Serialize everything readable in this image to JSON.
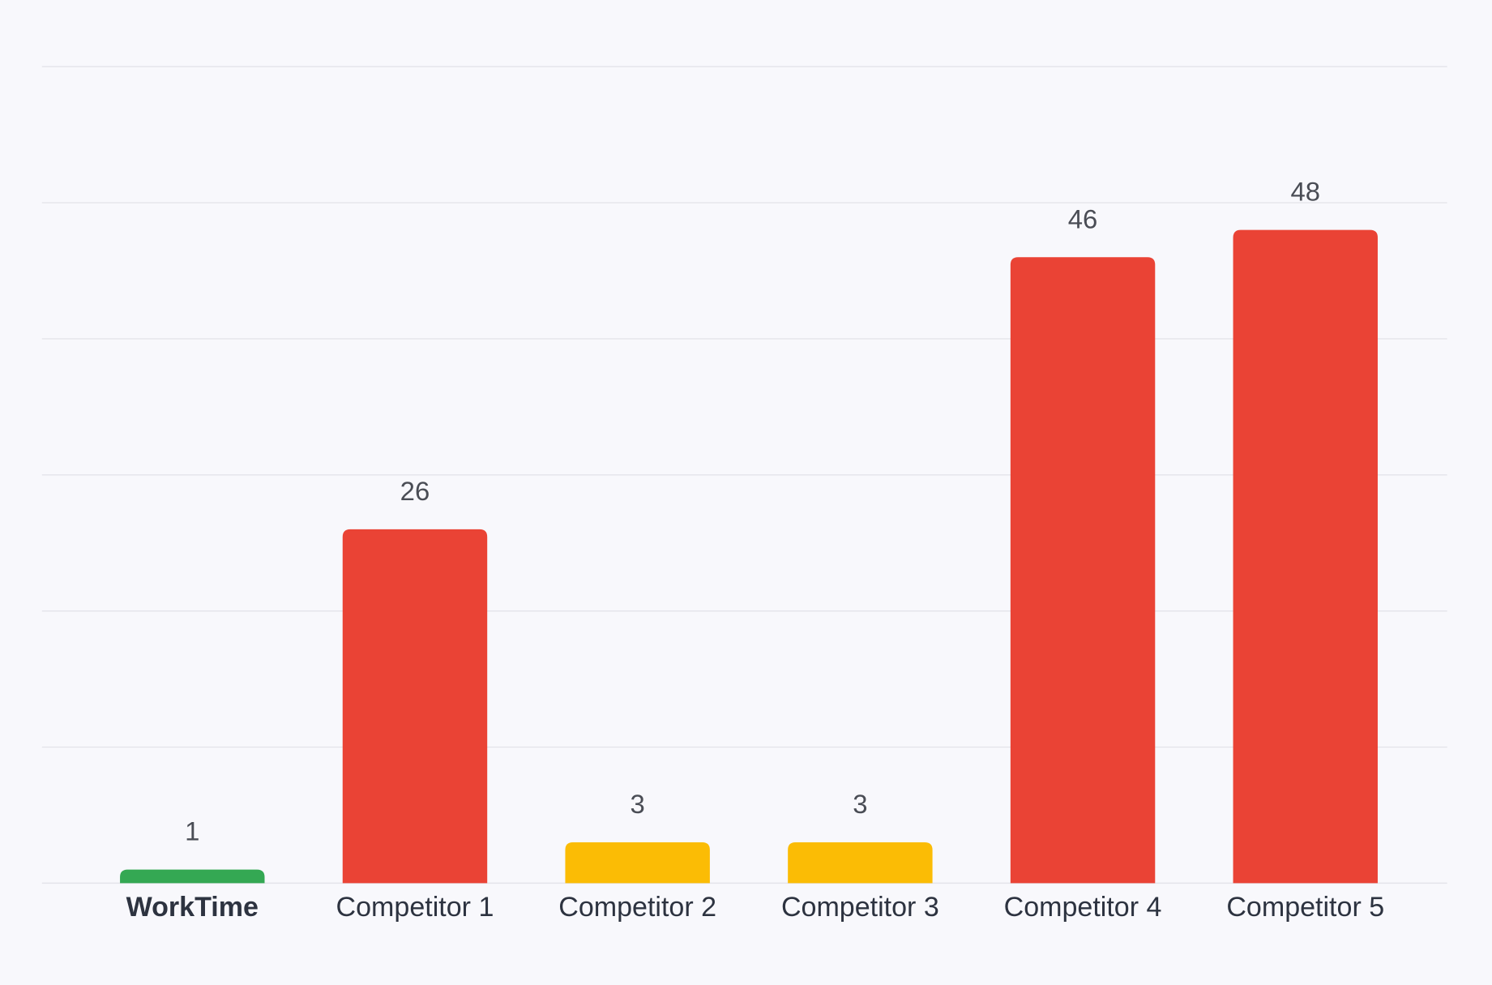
{
  "chart_data": {
    "type": "bar",
    "categories": [
      "WorkTime",
      "Competitor 1",
      "Competitor 2",
      "Competitor 3",
      "Competitor 4",
      "Competitor 5"
    ],
    "values": [
      1,
      26,
      3,
      3,
      46,
      48
    ],
    "colors": [
      "#34a853",
      "#ea4335",
      "#fbbc05",
      "#fbbc05",
      "#ea4335",
      "#ea4335"
    ],
    "ylim": [
      0,
      60
    ],
    "yticks": [
      0,
      10,
      20,
      30,
      40,
      50,
      60
    ],
    "grid": true
  }
}
